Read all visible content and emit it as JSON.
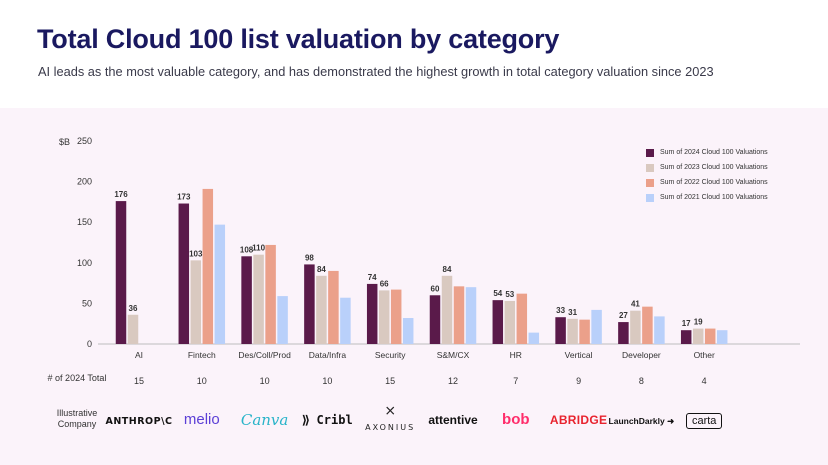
{
  "header": {
    "title": "Total Cloud 100 list valuation by category",
    "subtitle": "AI leads as the most valuable category, and has demonstrated the highest growth in total category valuation since 2023"
  },
  "chart_data": {
    "type": "bar",
    "unit_label": "$B",
    "ylim": [
      0,
      250
    ],
    "yticks": [
      0,
      50,
      100,
      150,
      200,
      250
    ],
    "categories": [
      "AI",
      "Fintech",
      "Des/Coll/Prod",
      "Data/Infra",
      "Security",
      "S&M/CX",
      "HR",
      "Vertical",
      "Developer",
      "Other"
    ],
    "series": [
      {
        "name": "Sum of 2024 Cloud 100 Valuations",
        "color": "#5a1a4a",
        "values": [
          176,
          173,
          108,
          98,
          74,
          60,
          54,
          33,
          27,
          17
        ]
      },
      {
        "name": "Sum of 2023 Cloud 100 Valuations",
        "color": "#d9c9c0",
        "values": [
          36,
          103,
          110,
          84,
          66,
          84,
          53,
          31,
          41,
          19
        ]
      },
      {
        "name": "Sum of 2022 Cloud 100 Valuations",
        "color": "#eba08a",
        "values": [
          0,
          191,
          122,
          90,
          67,
          71,
          62,
          30,
          46,
          19
        ]
      },
      {
        "name": "Sum of 2021 Cloud 100 Valuations",
        "color": "#b9d0fa",
        "values": [
          0,
          147,
          59,
          57,
          32,
          70,
          14,
          42,
          34,
          17
        ]
      }
    ],
    "labeled_series": [
      0,
      1
    ],
    "legend_position": "top-right"
  },
  "counts": {
    "label": "# of 2024 Total",
    "values": [
      "15",
      "10",
      "10",
      "10",
      "15",
      "12",
      "7",
      "9",
      "8",
      "4"
    ]
  },
  "companies": {
    "label": "Illustrative Company",
    "names": [
      "ANTHROP\\C",
      "melio",
      "Canva",
      "Cribl",
      "AXONIUS",
      "attentive",
      "bob",
      "ABRIDGE",
      "LaunchDarkly",
      "carta"
    ]
  }
}
